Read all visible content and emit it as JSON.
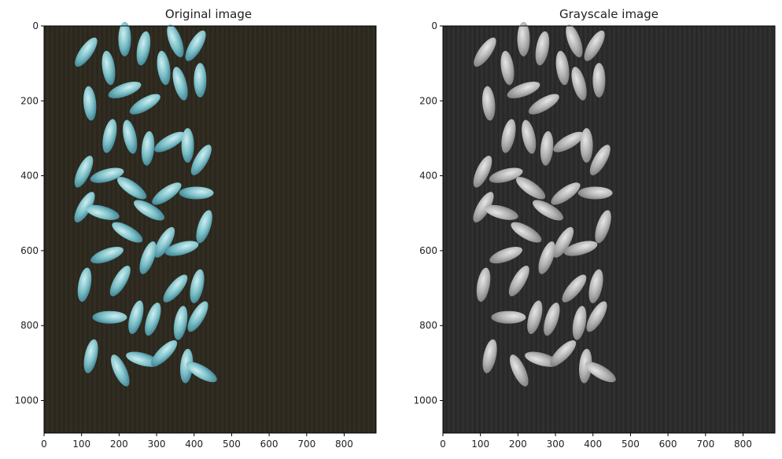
{
  "figure": {
    "panels": [
      {
        "title": "Original image",
        "x_ticks": [
          "0",
          "100",
          "200",
          "300",
          "400",
          "500",
          "600",
          "700",
          "800"
        ],
        "y_ticks": [
          "0",
          "200",
          "400",
          "600",
          "800",
          "1000"
        ],
        "colormap": "color",
        "background_color": "#2e2a20",
        "grain_color": "#5fa7b4",
        "grain_highlight": "#cfeef0"
      },
      {
        "title": "Grayscale image",
        "x_ticks": [
          "0",
          "100",
          "200",
          "300",
          "400",
          "500",
          "600",
          "700",
          "800"
        ],
        "y_ticks": [
          "0",
          "200",
          "400",
          "600",
          "800",
          "1000"
        ],
        "colormap": "gray",
        "background_color": "#2c2c2c",
        "grain_color": "#a0a0a0",
        "grain_highlight": "#e6e6e6"
      }
    ],
    "image_extent": {
      "x": [
        0,
        885
      ],
      "y": [
        0,
        1087
      ]
    },
    "grains": [
      {
        "x": 112,
        "y": 70,
        "angle": 35
      },
      {
        "x": 215,
        "y": 35,
        "angle": 0
      },
      {
        "x": 350,
        "y": 40,
        "angle": -20
      },
      {
        "x": 265,
        "y": 60,
        "angle": 10
      },
      {
        "x": 404,
        "y": 53,
        "angle": 30
      },
      {
        "x": 172,
        "y": 112,
        "angle": -8
      },
      {
        "x": 319,
        "y": 112,
        "angle": -8
      },
      {
        "x": 215,
        "y": 171,
        "angle": 70
      },
      {
        "x": 363,
        "y": 154,
        "angle": -15
      },
      {
        "x": 416,
        "y": 145,
        "angle": 0
      },
      {
        "x": 122,
        "y": 207,
        "angle": -5
      },
      {
        "x": 269,
        "y": 209,
        "angle": 60
      },
      {
        "x": 175,
        "y": 294,
        "angle": 12
      },
      {
        "x": 229,
        "y": 296,
        "angle": -12
      },
      {
        "x": 277,
        "y": 327,
        "angle": 5
      },
      {
        "x": 335,
        "y": 310,
        "angle": 60
      },
      {
        "x": 383,
        "y": 319,
        "angle": 0
      },
      {
        "x": 419,
        "y": 358,
        "angle": 30
      },
      {
        "x": 106,
        "y": 389,
        "angle": 25
      },
      {
        "x": 168,
        "y": 399,
        "angle": 75
      },
      {
        "x": 234,
        "y": 433,
        "angle": -55
      },
      {
        "x": 327,
        "y": 448,
        "angle": 55
      },
      {
        "x": 406,
        "y": 446,
        "angle": 90
      },
      {
        "x": 108,
        "y": 484,
        "angle": 30
      },
      {
        "x": 156,
        "y": 498,
        "angle": -75
      },
      {
        "x": 280,
        "y": 492,
        "angle": -60
      },
      {
        "x": 427,
        "y": 536,
        "angle": 18
      },
      {
        "x": 222,
        "y": 551,
        "angle": -60
      },
      {
        "x": 321,
        "y": 578,
        "angle": 30
      },
      {
        "x": 168,
        "y": 612,
        "angle": 70
      },
      {
        "x": 277,
        "y": 619,
        "angle": 20
      },
      {
        "x": 367,
        "y": 594,
        "angle": 75
      },
      {
        "x": 203,
        "y": 681,
        "angle": 30
      },
      {
        "x": 108,
        "y": 691,
        "angle": 10
      },
      {
        "x": 350,
        "y": 701,
        "angle": 40
      },
      {
        "x": 408,
        "y": 695,
        "angle": 12
      },
      {
        "x": 175,
        "y": 778,
        "angle": 90
      },
      {
        "x": 245,
        "y": 778,
        "angle": 15
      },
      {
        "x": 290,
        "y": 783,
        "angle": 18
      },
      {
        "x": 364,
        "y": 793,
        "angle": 10
      },
      {
        "x": 410,
        "y": 776,
        "angle": 30
      },
      {
        "x": 125,
        "y": 882,
        "angle": 12
      },
      {
        "x": 203,
        "y": 920,
        "angle": -25
      },
      {
        "x": 263,
        "y": 890,
        "angle": -75
      },
      {
        "x": 320,
        "y": 874,
        "angle": 45
      },
      {
        "x": 380,
        "y": 908,
        "angle": 5
      },
      {
        "x": 420,
        "y": 924,
        "angle": -60
      }
    ]
  }
}
